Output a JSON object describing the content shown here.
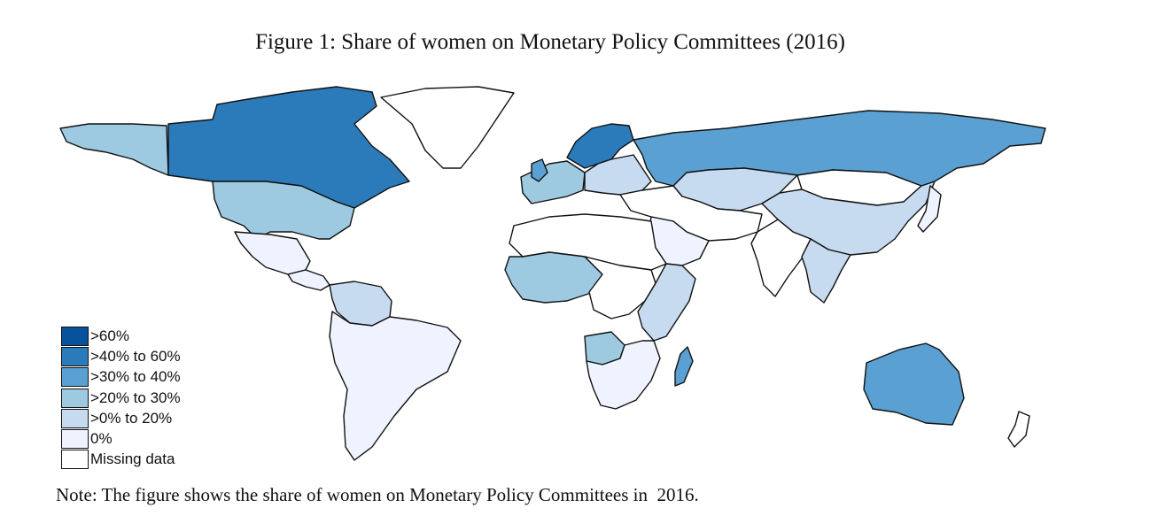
{
  "title": "Figure 1:  Share of women on Monetary Policy Committees  (2016)",
  "note": "Note: The figure shows the share of women on Monetary Policy Committees in  2016.",
  "colors": {
    "gt60": "#08519c",
    "40to60": "#2b7bba",
    "30to40": "#5aa0d2",
    "20to30": "#9ecae1",
    "0to20": "#c6dbef",
    "zero": "#eff3ff",
    "missing": "#ffffff",
    "border": "#111111"
  },
  "legend": [
    {
      "label": ">60%",
      "color": "#08519c"
    },
    {
      "label": ">40% to 60%",
      "color": "#2b7bba"
    },
    {
      "label": ">30% to 40%",
      "color": "#5aa0d2"
    },
    {
      "label": ">20% to 30%",
      "color": "#9ecae1"
    },
    {
      "label": ">0% to 20%",
      "color": "#c6dbef"
    },
    {
      "label": "0%",
      "color": "#eff3ff"
    },
    {
      "label": "Missing data",
      "color": "#ffffff"
    }
  ],
  "regions": [
    {
      "name": "Alaska",
      "category": "20to30"
    },
    {
      "name": "Canada",
      "category": "40to60"
    },
    {
      "name": "Greenland",
      "category": "missing"
    },
    {
      "name": "United States",
      "category": "20to30"
    },
    {
      "name": "Mexico",
      "category": "zero"
    },
    {
      "name": "Central America",
      "category": "zero"
    },
    {
      "name": "Colombia & Venezuela",
      "category": "0to20"
    },
    {
      "name": "South America",
      "category": "zero"
    },
    {
      "name": "Western Europe",
      "category": "20to30"
    },
    {
      "name": "Scandinavia",
      "category": "40to60"
    },
    {
      "name": "Eastern Europe",
      "category": "0to20"
    },
    {
      "name": "Russia",
      "category": "30to40"
    },
    {
      "name": "Kazakhstan",
      "category": "0to20"
    },
    {
      "name": "Mongolia",
      "category": "missing"
    },
    {
      "name": "China",
      "category": "0to20"
    },
    {
      "name": "Japan",
      "category": "zero"
    },
    {
      "name": "Middle East",
      "category": "missing"
    },
    {
      "name": "Saudi Arabia",
      "category": "zero"
    },
    {
      "name": "India",
      "category": "missing"
    },
    {
      "name": "Southeast Asia",
      "category": "0to20"
    },
    {
      "name": "North Africa",
      "category": "missing"
    },
    {
      "name": "West Africa",
      "category": "20to30"
    },
    {
      "name": "Central Africa",
      "category": "missing"
    },
    {
      "name": "East Africa",
      "category": "0to20"
    },
    {
      "name": "Angola",
      "category": "20to30"
    },
    {
      "name": "Southern Africa",
      "category": "zero"
    },
    {
      "name": "Madagascar",
      "category": "30to40"
    },
    {
      "name": "Australia",
      "category": "30to40"
    },
    {
      "name": "New Zealand",
      "category": "missing"
    },
    {
      "name": "UK",
      "category": "30to40"
    }
  ]
}
